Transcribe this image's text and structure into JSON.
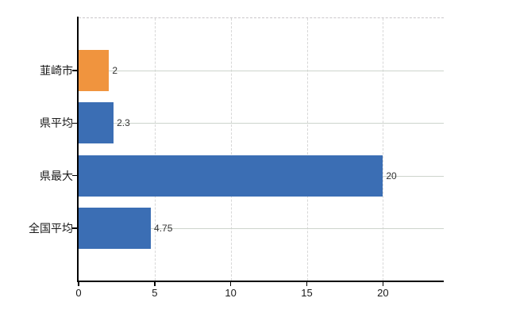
{
  "chart_data": {
    "type": "bar",
    "orientation": "horizontal",
    "title": "",
    "xlabel": "",
    "ylabel": "",
    "categories": [
      "韮崎市",
      "県平均",
      "県最大",
      "全国平均"
    ],
    "values": [
      2,
      2.3,
      20,
      4.75
    ],
    "value_labels": [
      "2",
      "2.3",
      "20",
      "4.75"
    ],
    "bar_colors": [
      "#f0943e",
      "#3b6eb4",
      "#3b6eb4",
      "#3b6eb4"
    ],
    "x_ticks": [
      0,
      5,
      10,
      15,
      20
    ],
    "x_tick_labels": [
      "0",
      "5",
      "10",
      "15",
      "20"
    ],
    "xlim": [
      0,
      24
    ],
    "grid": true,
    "legend": "none",
    "colors": {
      "highlight_bar": "#f0943e",
      "default_bar": "#3b6eb4",
      "axis": "#000000",
      "h_gridline": "#cdd4cc",
      "v_gridline": "#d7d7d7",
      "top_border": "#c9c6c9",
      "background": "#ffffff"
    }
  }
}
